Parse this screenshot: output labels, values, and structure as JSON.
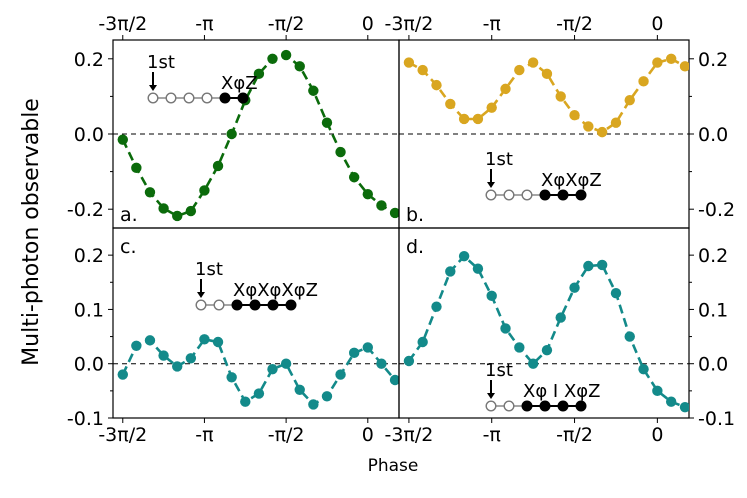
{
  "figure": {
    "ylabel": "Multi-photon observable",
    "xlabel": "Phase"
  },
  "chart_data": [
    {
      "type": "line",
      "panel": "a.",
      "color": "#0b6b0b",
      "xlim": [
        -4.9,
        0.6
      ],
      "ylim": [
        -0.25,
        0.25
      ],
      "xticks": [
        "-3π/2",
        "-π",
        "-π/2",
        "0"
      ],
      "xticks_position": "top",
      "yticks": [
        "0.2",
        "0.0",
        "-0.2"
      ],
      "ytick_values": [
        0.2,
        0.0,
        -0.2
      ],
      "yticks_position": "left",
      "x": [
        -4.712,
        -4.451,
        -4.189,
        -3.927,
        -3.665,
        -3.403,
        -3.142,
        -2.88,
        -2.618,
        -2.356,
        -2.094,
        -1.833,
        -1.571,
        -1.309,
        -1.047,
        -0.785,
        -0.524,
        -0.262,
        0.0,
        0.262,
        0.524
      ],
      "y": [
        -0.015,
        -0.09,
        -0.155,
        -0.198,
        -0.218,
        -0.205,
        -0.15,
        -0.085,
        0.0,
        0.09,
        0.16,
        0.2,
        0.21,
        0.18,
        0.115,
        0.03,
        -0.048,
        -0.115,
        -0.16,
        -0.19,
        -0.21
      ],
      "fit_line": "dashed",
      "inset": {
        "first": "1st",
        "label": "XφZ",
        "open_nodes": 4,
        "filled_nodes": 2
      }
    },
    {
      "type": "line",
      "panel": "b.",
      "color": "#d9a620",
      "xlim": [
        -4.9,
        0.6
      ],
      "ylim": [
        -0.25,
        0.25
      ],
      "xticks": [
        "-3π/2",
        "-π",
        "-π/2",
        "0"
      ],
      "xticks_position": "top",
      "yticks": [
        "0.2",
        "0.0",
        "-0.2"
      ],
      "ytick_values": [
        0.2,
        0.0,
        -0.2
      ],
      "yticks_position": "right",
      "x": [
        -4.712,
        -4.451,
        -4.189,
        -3.927,
        -3.665,
        -3.403,
        -3.142,
        -2.88,
        -2.618,
        -2.356,
        -2.094,
        -1.833,
        -1.571,
        -1.309,
        -1.047,
        -0.785,
        -0.524,
        -0.262,
        0.0,
        0.262,
        0.524
      ],
      "y": [
        0.19,
        0.17,
        0.13,
        0.08,
        0.04,
        0.04,
        0.07,
        0.12,
        0.17,
        0.19,
        0.16,
        0.1,
        0.05,
        0.02,
        0.005,
        0.03,
        0.09,
        0.14,
        0.19,
        0.2,
        0.18
      ],
      "fit_line": "dashed",
      "inset": {
        "first": "1st",
        "label": "XφXφZ",
        "open_nodes": 3,
        "filled_nodes": 3
      }
    },
    {
      "type": "line",
      "panel": "c.",
      "color": "#138a8a",
      "xlim": [
        -4.9,
        0.6
      ],
      "ylim": [
        -0.1,
        0.25
      ],
      "xticks": [
        "-3π/2",
        "-π",
        "-π/2",
        "0"
      ],
      "xticks_position": "bottom",
      "yticks": [
        "0.2",
        "0.1",
        "0.0",
        "-0.1"
      ],
      "ytick_values": [
        0.2,
        0.1,
        0.0,
        -0.1
      ],
      "yticks_position": "left",
      "x": [
        -4.712,
        -4.451,
        -4.189,
        -3.927,
        -3.665,
        -3.403,
        -3.142,
        -2.88,
        -2.618,
        -2.356,
        -2.094,
        -1.833,
        -1.571,
        -1.309,
        -1.047,
        -0.785,
        -0.524,
        -0.262,
        0.0,
        0.262,
        0.524
      ],
      "y": [
        -0.02,
        0.033,
        0.043,
        0.015,
        -0.005,
        0.01,
        0.045,
        0.04,
        -0.025,
        -0.07,
        -0.055,
        -0.01,
        0.0,
        -0.048,
        -0.075,
        -0.06,
        -0.02,
        0.02,
        0.03,
        0.0,
        -0.03
      ],
      "fit_line": "dashed",
      "inset": {
        "first": "1st",
        "label": "XφXφXφZ",
        "open_nodes": 2,
        "filled_nodes": 4
      }
    },
    {
      "type": "line",
      "panel": "d.",
      "color": "#138a8a",
      "xlim": [
        -4.9,
        0.6
      ],
      "ylim": [
        -0.1,
        0.25
      ],
      "xticks": [
        "-3π/2",
        "-π",
        "-π/2",
        "0"
      ],
      "xticks_position": "bottom",
      "yticks": [
        "0.2",
        "0.1",
        "0.0",
        "-0.1"
      ],
      "ytick_values": [
        0.2,
        0.1,
        0.0,
        -0.1
      ],
      "yticks_position": "right",
      "x": [
        -4.712,
        -4.451,
        -4.189,
        -3.927,
        -3.665,
        -3.403,
        -3.142,
        -2.88,
        -2.618,
        -2.356,
        -2.094,
        -1.833,
        -1.571,
        -1.309,
        -1.047,
        -0.785,
        -0.524,
        -0.262,
        0.0,
        0.262,
        0.524
      ],
      "y": [
        0.005,
        0.04,
        0.105,
        0.17,
        0.198,
        0.175,
        0.125,
        0.065,
        0.03,
        0.0,
        0.025,
        0.085,
        0.14,
        0.18,
        0.182,
        0.13,
        0.05,
        -0.01,
        -0.05,
        -0.07,
        -0.08
      ],
      "fit_line": "dashed",
      "inset": {
        "first": "1st",
        "label": "Xφ I XφZ",
        "open_nodes": 2,
        "filled_nodes": 4
      }
    }
  ]
}
